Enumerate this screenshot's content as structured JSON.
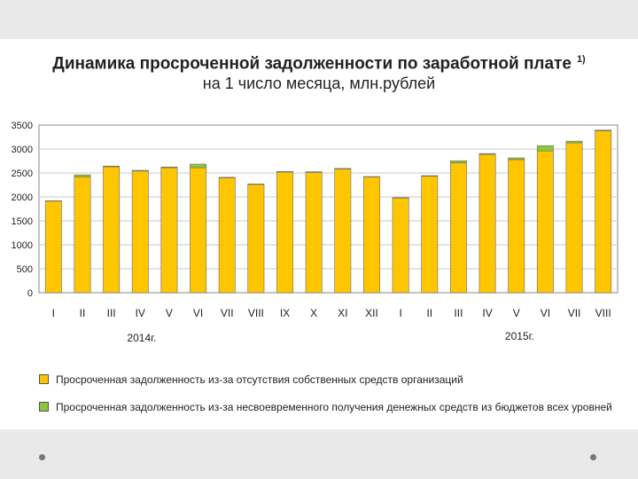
{
  "slide": {
    "title": "Динамика просроченной задолженности по заработной плате",
    "title_footnote": "1)",
    "subtitle": "на 1 число месяца, млн.рублей"
  },
  "chart_data": {
    "type": "bar",
    "stacked": true,
    "categories": [
      "I",
      "II",
      "III",
      "IV",
      "V",
      "VI",
      "VII",
      "VIII",
      "IX",
      "X",
      "XI",
      "XII",
      "I",
      "II",
      "III",
      "IV",
      "V",
      "VI",
      "VII",
      "VIII"
    ],
    "year_groups": [
      {
        "label": "2014г.",
        "from": 0,
        "to": 11
      },
      {
        "label": "2015г.",
        "from": 12,
        "to": 19
      }
    ],
    "series": [
      {
        "name": "Просроченная задолженность из-за отсутствия собственных средств организаций",
        "color": "#ffc600",
        "values": [
          1915,
          2420,
          2630,
          2540,
          2610,
          2610,
          2400,
          2260,
          2520,
          2510,
          2580,
          2420,
          1980,
          2430,
          2710,
          2890,
          2780,
          2960,
          3130,
          3380
        ]
      },
      {
        "name": "Просроченная задолженность из-за несвоевременного получения денежных средств из бюджетов всех уровней",
        "color": "#8cc63e",
        "values": [
          5,
          40,
          15,
          15,
          15,
          75,
          10,
          10,
          10,
          15,
          15,
          5,
          5,
          15,
          45,
          15,
          35,
          110,
          35,
          15
        ]
      }
    ],
    "y_ticks": [
      "0",
      "500",
      "1000",
      "1500",
      "2000",
      "2500",
      "3000",
      "3500"
    ],
    "ylim": [
      0,
      3500
    ],
    "grid": "horizontal",
    "legend_position": "bottom"
  }
}
